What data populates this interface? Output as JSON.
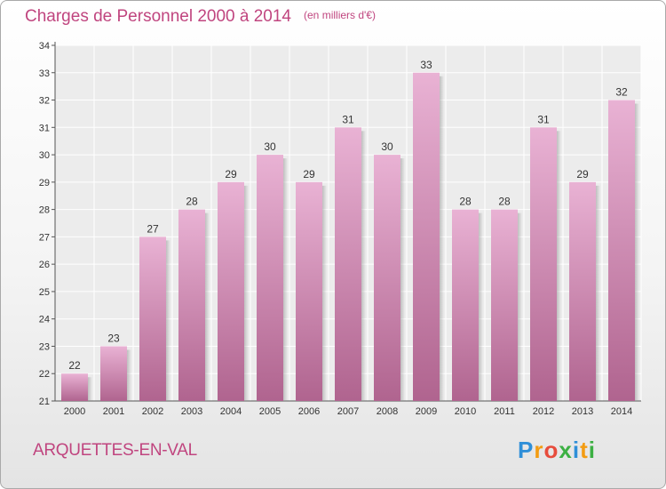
{
  "title": "Charges de Personnel 2000 à 2014",
  "subtitle": "(en milliers d'€)",
  "commune": "ARQUETTES-EN-VAL",
  "logo": {
    "letters": [
      "P",
      "r",
      "o",
      "x",
      "i",
      "t",
      "i"
    ],
    "colors": [
      "#2f8fd8",
      "#f39c12",
      "#e74c3c",
      "#3cb043",
      "#2f8fd8",
      "#f39c12",
      "#3cb043"
    ]
  },
  "colors": {
    "bar_top": "#e9b2d4",
    "bar_bottom": "#b0648f",
    "accent": "#c0457f"
  },
  "chart_data": {
    "type": "bar",
    "title": "Charges de Personnel 2000 à 2014",
    "subtitle": "(en milliers d'€)",
    "categories": [
      "2000",
      "2001",
      "2002",
      "2003",
      "2004",
      "2005",
      "2006",
      "2007",
      "2008",
      "2009",
      "2010",
      "2011",
      "2012",
      "2013",
      "2014"
    ],
    "values": [
      22,
      23,
      27,
      28,
      29,
      30,
      29,
      31,
      30,
      33,
      28,
      28,
      31,
      29,
      32
    ],
    "ylim": [
      21,
      34
    ],
    "yticks": [
      21,
      22,
      23,
      24,
      25,
      26,
      27,
      28,
      29,
      30,
      31,
      32,
      33,
      34
    ],
    "grid": true
  }
}
